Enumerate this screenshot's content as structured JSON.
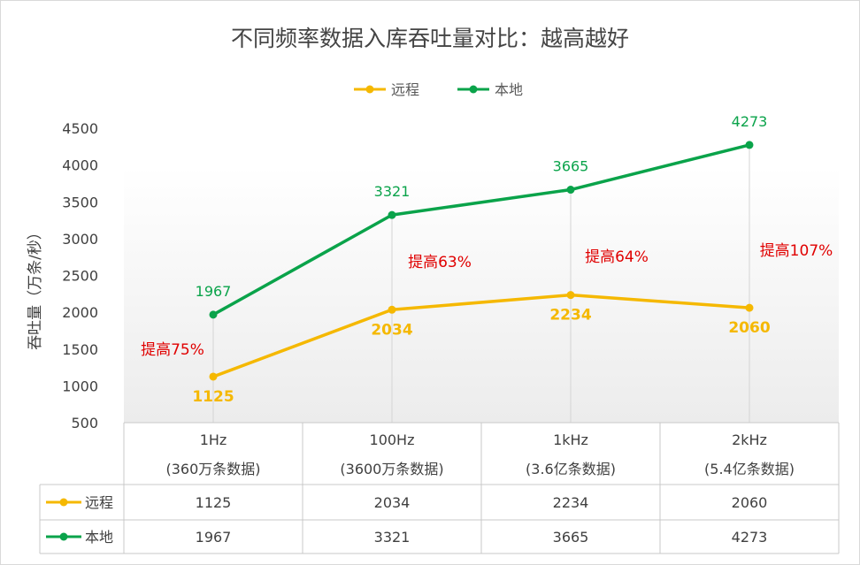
{
  "chart_data": {
    "type": "line",
    "title": "不同频率数据入库吞吐量对比：越高越好",
    "ylabel": "吞吐量（万条/秒）",
    "ylim": [
      500,
      4500
    ],
    "yticks": [
      500,
      1000,
      1500,
      2000,
      2500,
      3000,
      3500,
      4000,
      4500
    ],
    "categories": [
      {
        "line1": "1Hz",
        "line2": "(360万条数据)"
      },
      {
        "line1": "100Hz",
        "line2": "(3600万条数据)"
      },
      {
        "line1": "1kHz",
        "line2": "(3.6亿条数据)"
      },
      {
        "line1": "2kHz",
        "line2": "(5.4亿条数据)"
      }
    ],
    "series": [
      {
        "name": "远程",
        "color": "#f5b800",
        "values": [
          1125,
          2034,
          2234,
          2060
        ]
      },
      {
        "name": "本地",
        "color": "#0aa34a",
        "values": [
          1967,
          3321,
          3665,
          4273
        ]
      }
    ],
    "annotations": [
      "提高75%",
      "提高63%",
      "提高64%",
      "提高107%"
    ],
    "legend_position": "top",
    "data_table": true,
    "grid": false
  }
}
